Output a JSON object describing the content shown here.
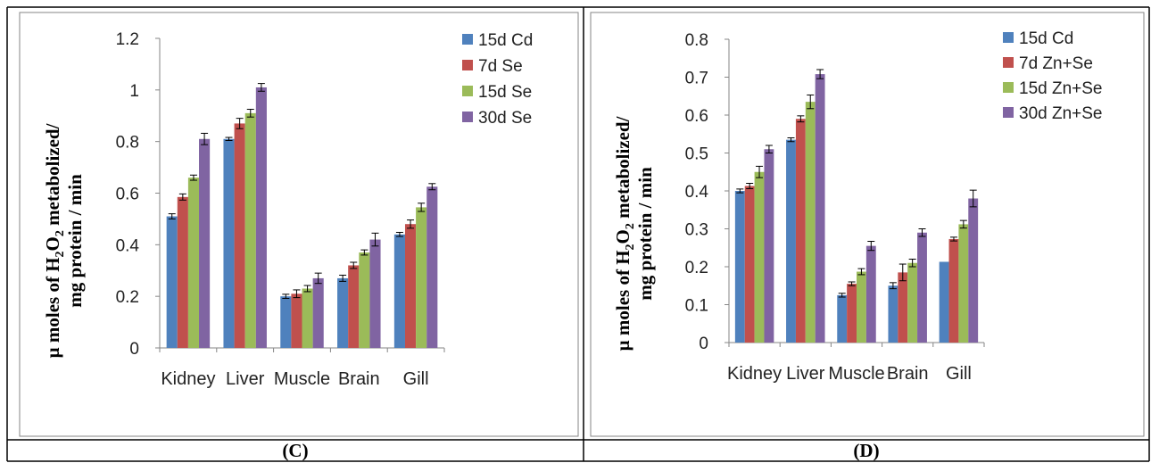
{
  "captions": [
    "(C)",
    "(D)"
  ],
  "colors": {
    "series": [
      "#4F81BD",
      "#C0504D",
      "#9BBB59",
      "#8064A2"
    ],
    "errorbar": "#000000",
    "border": "#000000",
    "chart_frame": "#868686"
  },
  "chart_data": [
    {
      "type": "bar",
      "panel": "(C)",
      "ylabel": {
        "line1_prefix": "µ moles of H",
        "sub1": "2",
        "mid": "O",
        "sub2": "2",
        "line1_suffix": " metabolized/",
        "line2": "mg protein / min"
      },
      "categories": [
        "Kidney",
        "Liver",
        "Muscle",
        "Brain",
        "Gill"
      ],
      "ylim": [
        0,
        1.2
      ],
      "yticks": [
        "0",
        "0.2",
        "0.4",
        "0.6",
        "0.8",
        "1",
        "1.2"
      ],
      "ytick_values": [
        0,
        0.2,
        0.4,
        0.6,
        0.8,
        1,
        1.2
      ],
      "legend_position": "top-right",
      "grid": false,
      "series": [
        {
          "name": "15d Cd",
          "values": [
            0.51,
            0.81,
            0.2,
            0.27,
            0.44
          ],
          "errors": [
            0.01,
            0.006,
            0.008,
            0.012,
            0.008
          ]
        },
        {
          "name": "7d Se",
          "values": [
            0.585,
            0.87,
            0.21,
            0.32,
            0.48
          ],
          "errors": [
            0.012,
            0.02,
            0.015,
            0.012,
            0.016
          ]
        },
        {
          "name": "15d Se",
          "values": [
            0.66,
            0.91,
            0.23,
            0.37,
            0.545
          ],
          "errors": [
            0.01,
            0.015,
            0.012,
            0.01,
            0.016
          ]
        },
        {
          "name": "30d Se",
          "values": [
            0.81,
            1.01,
            0.27,
            0.42,
            0.625
          ],
          "errors": [
            0.022,
            0.015,
            0.02,
            0.025,
            0.012
          ]
        }
      ]
    },
    {
      "type": "bar",
      "panel": "(D)",
      "ylabel": {
        "line1_prefix": "µ moles of H",
        "sub1": "2",
        "mid": "O",
        "sub2": "2",
        "line1_suffix": " metabolized/",
        "line2": "mg protein / min"
      },
      "categories": [
        "Kidney",
        "Liver",
        "Muscle",
        "Brain",
        "Gill"
      ],
      "ylim": [
        0,
        0.8
      ],
      "yticks": [
        "0",
        "0.1",
        "0.2",
        "0.3",
        "0.4",
        "0.5",
        "0.6",
        "0.7",
        "0.8"
      ],
      "ytick_values": [
        0,
        0.1,
        0.2,
        0.3,
        0.4,
        0.5,
        0.6,
        0.7,
        0.8
      ],
      "legend_position": "top-right",
      "grid": false,
      "series": [
        {
          "name": "15d Cd",
          "values": [
            0.4,
            0.535,
            0.125,
            0.15,
            0.213
          ],
          "errors": [
            0.005,
            0.005,
            0.005,
            0.008,
            0
          ]
        },
        {
          "name": "7d Zn+Se",
          "values": [
            0.413,
            0.59,
            0.155,
            0.185,
            0.273
          ],
          "errors": [
            0.007,
            0.008,
            0.005,
            0.022,
            0.005
          ]
        },
        {
          "name": "15d Zn+Se",
          "values": [
            0.45,
            0.635,
            0.187,
            0.21,
            0.312
          ],
          "errors": [
            0.015,
            0.018,
            0.008,
            0.01,
            0.01
          ]
        },
        {
          "name": "30d Zn+Se",
          "values": [
            0.51,
            0.708,
            0.255,
            0.29,
            0.38
          ],
          "errors": [
            0.01,
            0.012,
            0.012,
            0.01,
            0.022
          ]
        }
      ]
    }
  ]
}
